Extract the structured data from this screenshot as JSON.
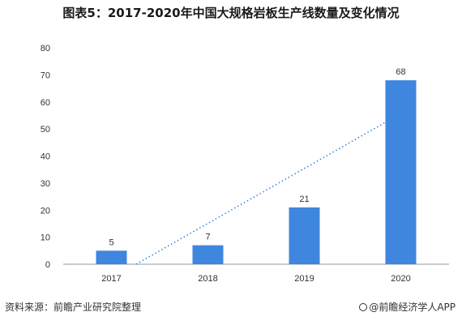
{
  "title": "图表5：2017-2020年中国大规格岩板生产线数量及变化情况",
  "source": "资料来源：前瞻产业研究院整理",
  "brand": "@前瞻经济学人APP",
  "chart_data": {
    "type": "bar",
    "categories": [
      "2017",
      "2018",
      "2019",
      "2020"
    ],
    "values": [
      5,
      7,
      21,
      68
    ],
    "ylim": [
      0,
      80
    ],
    "yticks": [
      0,
      10,
      20,
      30,
      40,
      50,
      60,
      70,
      80
    ],
    "bar_color": "#3f86df",
    "trendline": {
      "style": "dotted",
      "color": "#3f86df"
    },
    "grid": false,
    "legend": "none"
  }
}
